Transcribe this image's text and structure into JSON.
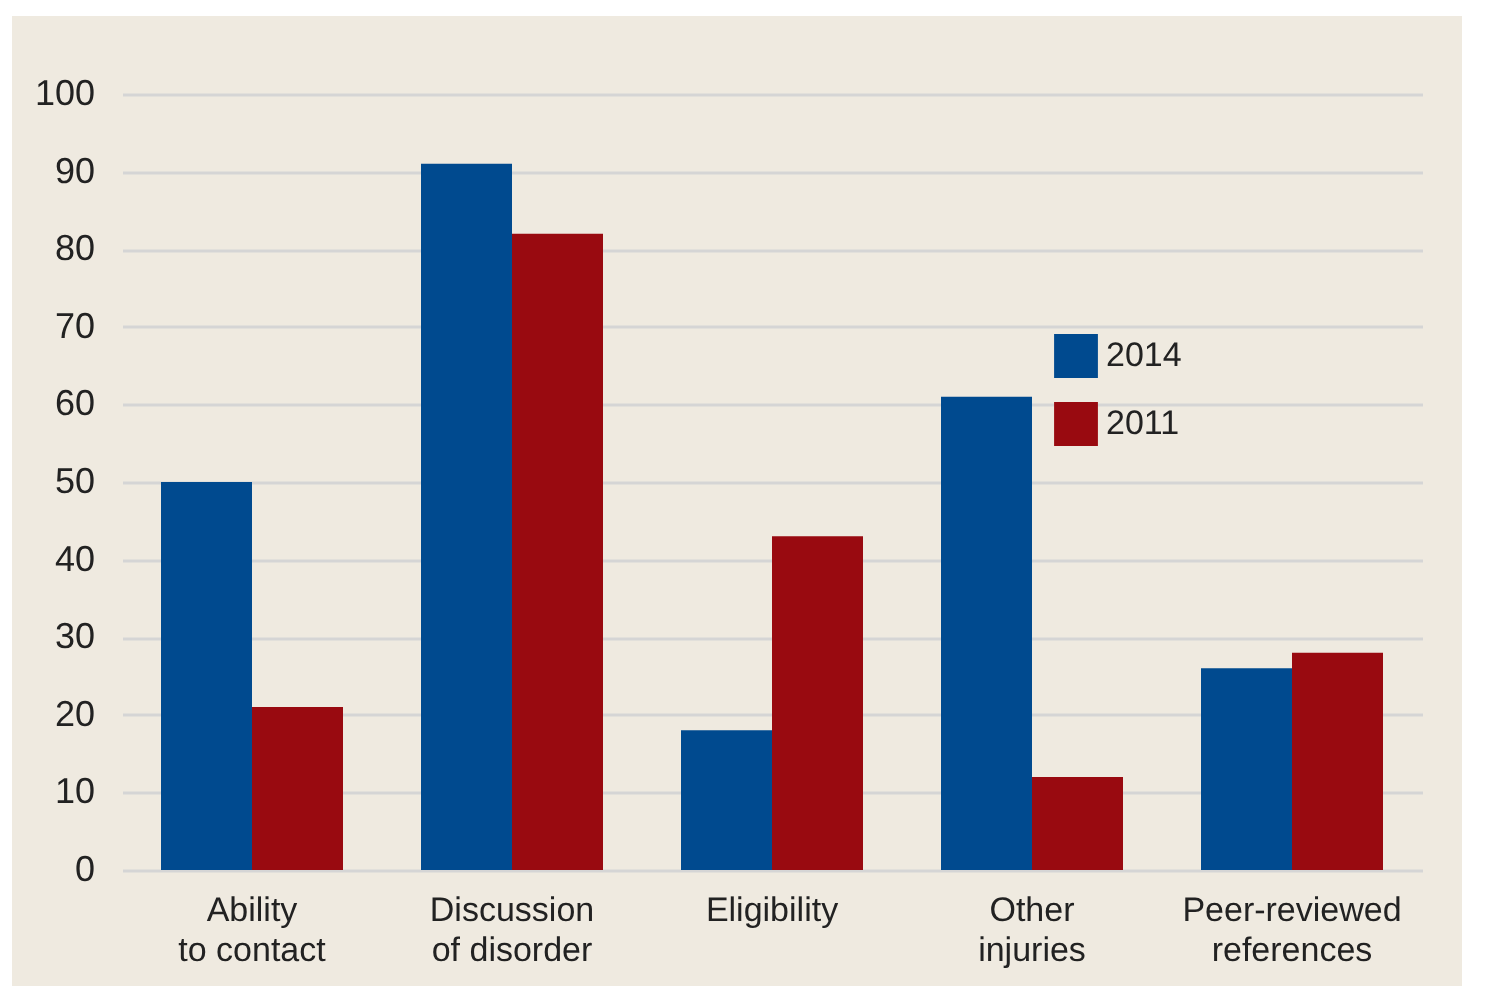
{
  "chart_data": {
    "type": "bar",
    "categories": [
      "Ability to contact",
      "Discussion of disorder",
      "Eligibility",
      "Other injuries",
      "Peer-reviewed references"
    ],
    "series": [
      {
        "name": "2014",
        "color": "#004a8f",
        "values": [
          50,
          91,
          18,
          61,
          26
        ]
      },
      {
        "name": "2011",
        "color": "#990a10",
        "values": [
          21,
          82,
          43,
          12,
          28
        ]
      }
    ],
    "ylim": [
      0,
      100
    ],
    "yticks": [
      0,
      10,
      20,
      30,
      40,
      50,
      60,
      70,
      80,
      90,
      100
    ],
    "grid": "y",
    "legend": "top right"
  }
}
